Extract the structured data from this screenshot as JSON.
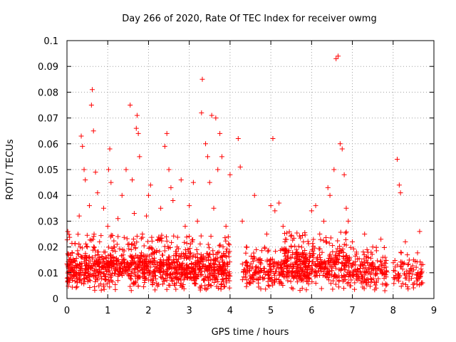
{
  "chart_data": {
    "type": "scatter",
    "title": "Day 266 of 2020, Rate Of TEC Index for receiver owmg",
    "xlabel": "GPS time / hours",
    "ylabel": "ROTI / TECUs",
    "xlim": [
      0,
      9
    ],
    "ylim": [
      0,
      0.1
    ],
    "x_ticks": [
      "0",
      "1",
      "2",
      "3",
      "4",
      "5",
      "6",
      "7",
      "8",
      "9"
    ],
    "y_ticks": [
      "0",
      "0.01",
      "0.02",
      "0.03",
      "0.04",
      "0.05",
      "0.06",
      "0.07",
      "0.08",
      "0.09",
      "0.1"
    ],
    "grid": true,
    "marker": "plus",
    "color": "#ff0000",
    "series": [
      {
        "points": [
          [
            0.02,
            0.026
          ],
          [
            0.05,
            0.015
          ],
          [
            0.08,
            0.008
          ],
          [
            0.12,
            0.012
          ],
          [
            0.18,
            0.009
          ],
          [
            0.25,
            0.013
          ],
          [
            0.3,
            0.032
          ],
          [
            0.35,
            0.063
          ],
          [
            0.38,
            0.059
          ],
          [
            0.42,
            0.05
          ],
          [
            0.45,
            0.046
          ],
          [
            0.5,
            0.02
          ],
          [
            0.55,
            0.036
          ],
          [
            0.6,
            0.075
          ],
          [
            0.62,
            0.081
          ],
          [
            0.65,
            0.065
          ],
          [
            0.7,
            0.049
          ],
          [
            0.75,
            0.041
          ],
          [
            0.8,
            0.022
          ],
          [
            0.9,
            0.035
          ],
          [
            0.95,
            0.016
          ],
          [
            1.0,
            0.028
          ],
          [
            1.02,
            0.05
          ],
          [
            1.05,
            0.058
          ],
          [
            1.08,
            0.045
          ],
          [
            1.15,
            0.02
          ],
          [
            1.25,
            0.031
          ],
          [
            1.35,
            0.04
          ],
          [
            1.45,
            0.05
          ],
          [
            1.55,
            0.075
          ],
          [
            1.6,
            0.046
          ],
          [
            1.65,
            0.033
          ],
          [
            1.7,
            0.066
          ],
          [
            1.72,
            0.071
          ],
          [
            1.75,
            0.064
          ],
          [
            1.78,
            0.055
          ],
          [
            1.85,
            0.025
          ],
          [
            1.95,
            0.032
          ],
          [
            2.0,
            0.04
          ],
          [
            2.05,
            0.044
          ],
          [
            2.15,
            0.018
          ],
          [
            2.3,
            0.035
          ],
          [
            2.4,
            0.059
          ],
          [
            2.45,
            0.064
          ],
          [
            2.5,
            0.05
          ],
          [
            2.55,
            0.043
          ],
          [
            2.6,
            0.038
          ],
          [
            2.7,
            0.02
          ],
          [
            2.8,
            0.046
          ],
          [
            2.9,
            0.028
          ],
          [
            3.0,
            0.036
          ],
          [
            3.1,
            0.045
          ],
          [
            3.2,
            0.03
          ],
          [
            3.3,
            0.072
          ],
          [
            3.32,
            0.085
          ],
          [
            3.4,
            0.06
          ],
          [
            3.45,
            0.055
          ],
          [
            3.5,
            0.045
          ],
          [
            3.55,
            0.071
          ],
          [
            3.6,
            0.035
          ],
          [
            3.65,
            0.07
          ],
          [
            3.7,
            0.05
          ],
          [
            3.75,
            0.064
          ],
          [
            3.8,
            0.055
          ],
          [
            3.9,
            0.028
          ],
          [
            4.0,
            0.048
          ],
          [
            4.2,
            0.062
          ],
          [
            4.25,
            0.051
          ],
          [
            4.3,
            0.03
          ],
          [
            4.4,
            0.02
          ],
          [
            4.6,
            0.04
          ],
          [
            4.7,
            0.015
          ],
          [
            4.9,
            0.025
          ],
          [
            5.0,
            0.036
          ],
          [
            5.05,
            0.062
          ],
          [
            5.1,
            0.034
          ],
          [
            5.2,
            0.037
          ],
          [
            5.3,
            0.028
          ],
          [
            5.5,
            0.02
          ],
          [
            5.7,
            0.017
          ],
          [
            5.8,
            0.022
          ],
          [
            5.9,
            0.015
          ],
          [
            6.0,
            0.034
          ],
          [
            6.1,
            0.036
          ],
          [
            6.2,
            0.025
          ],
          [
            6.3,
            0.03
          ],
          [
            6.4,
            0.043
          ],
          [
            6.45,
            0.04
          ],
          [
            6.55,
            0.05
          ],
          [
            6.6,
            0.093
          ],
          [
            6.65,
            0.094
          ],
          [
            6.7,
            0.06
          ],
          [
            6.75,
            0.058
          ],
          [
            6.8,
            0.048
          ],
          [
            6.85,
            0.035
          ],
          [
            6.9,
            0.03
          ],
          [
            7.0,
            0.022
          ],
          [
            7.1,
            0.018
          ],
          [
            7.3,
            0.025
          ],
          [
            7.5,
            0.02
          ],
          [
            7.7,
            0.023
          ],
          [
            7.8,
            0.016
          ],
          [
            8.1,
            0.054
          ],
          [
            8.15,
            0.044
          ],
          [
            8.18,
            0.041
          ],
          [
            8.3,
            0.022
          ],
          [
            8.5,
            0.015
          ],
          [
            8.65,
            0.026
          ],
          [
            8.7,
            0.01
          ]
        ],
        "dense_band": {
          "segments": [
            {
              "x": [
                0.0,
                4.0
              ],
              "y_center": 0.011,
              "y_spread": 0.005,
              "upper_spread": 0.014,
              "count": 1100
            },
            {
              "x": [
                4.3,
                5.3
              ],
              "y_center": 0.01,
              "y_spread": 0.004,
              "upper_spread": 0.01,
              "count": 180
            },
            {
              "x": [
                5.3,
                6.9
              ],
              "y_center": 0.012,
              "y_spread": 0.005,
              "upper_spread": 0.014,
              "count": 420
            },
            {
              "x": [
                6.9,
                7.85
              ],
              "y_center": 0.01,
              "y_spread": 0.004,
              "upper_spread": 0.01,
              "count": 180
            },
            {
              "x": [
                8.0,
                8.75
              ],
              "y_center": 0.009,
              "y_spread": 0.004,
              "upper_spread": 0.009,
              "count": 90
            }
          ]
        }
      }
    ]
  }
}
